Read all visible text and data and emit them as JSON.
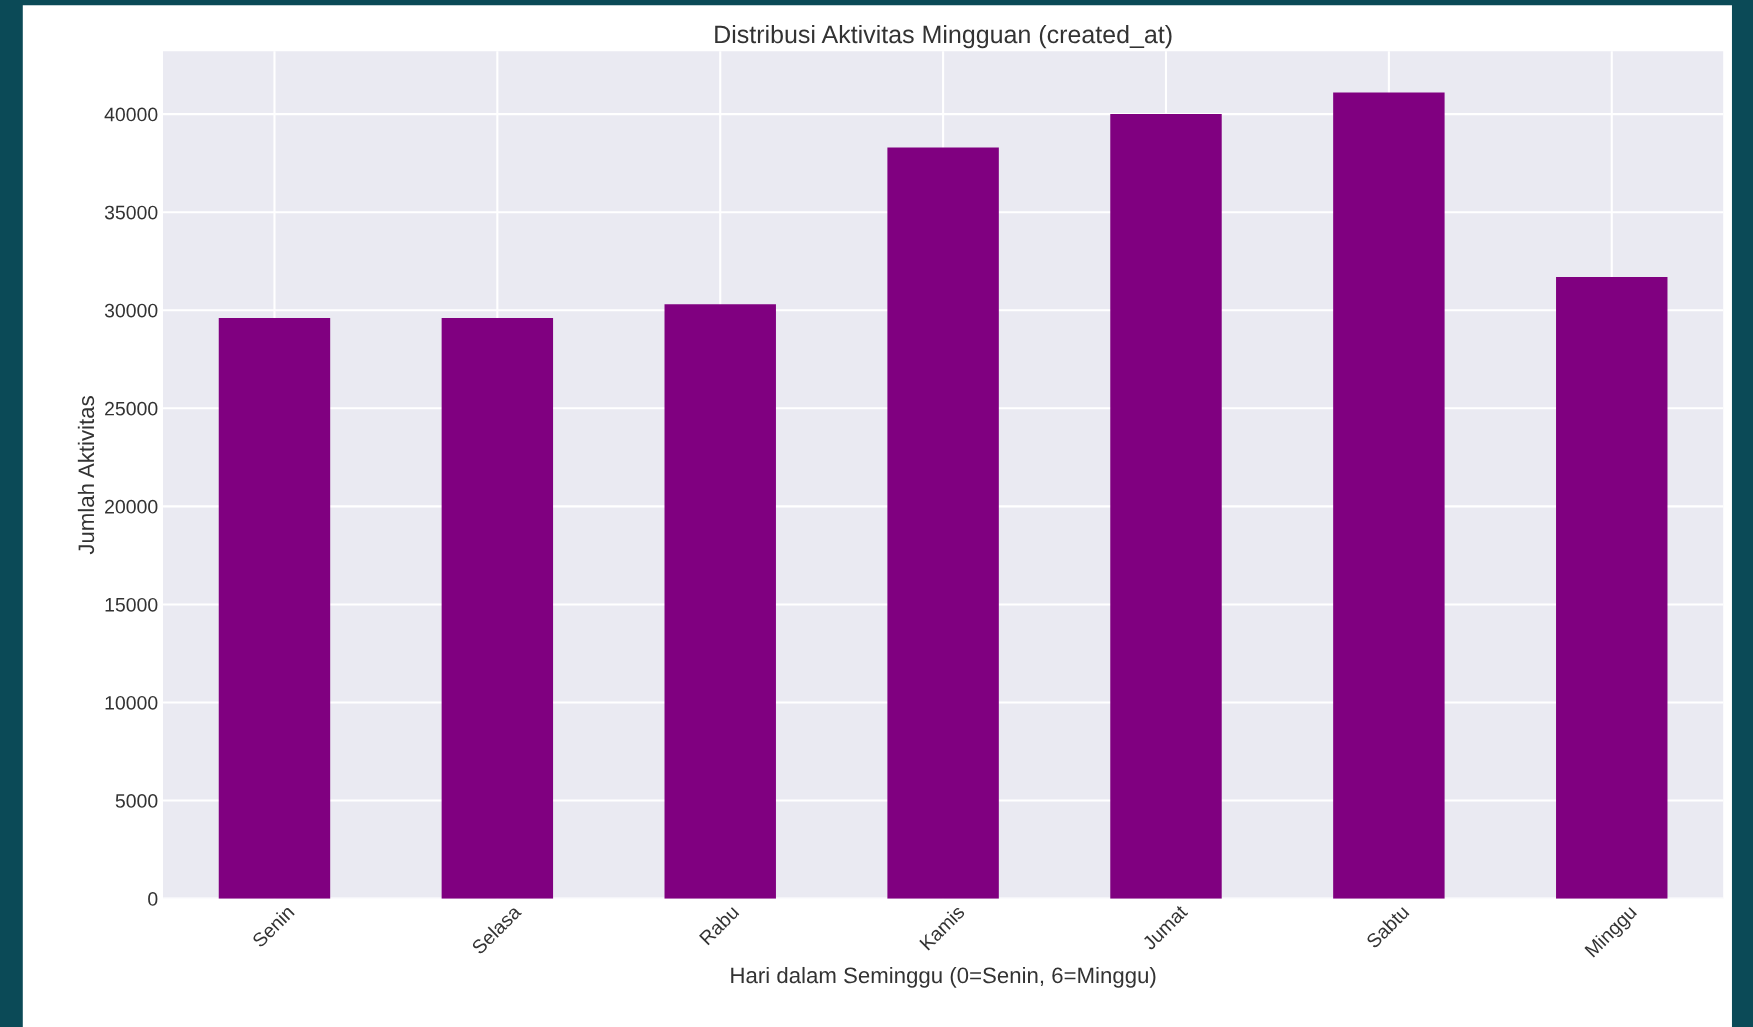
{
  "chart_data": {
    "type": "bar",
    "title": "Distribusi Aktivitas Mingguan (created_at)",
    "xlabel": "Hari dalam Seminggu (0=Senin, 6=Minggu)",
    "ylabel": "Jumlah Aktivitas",
    "categories": [
      "Senin",
      "Selasa",
      "Rabu",
      "Kamis",
      "Jumat",
      "Sabtu",
      "Minggu"
    ],
    "values": [
      29600,
      29600,
      30300,
      38300,
      40000,
      41100,
      31700
    ],
    "color": "#800080",
    "ylim": [
      0,
      43200
    ],
    "yticks": [
      0,
      5000,
      10000,
      15000,
      20000,
      25000,
      30000,
      35000,
      40000
    ],
    "grid": true
  }
}
